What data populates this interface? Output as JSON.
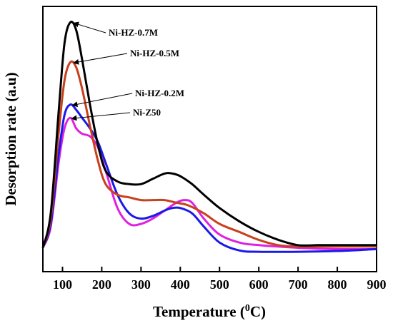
{
  "chart_data": {
    "type": "line",
    "title": "",
    "xlabel": "Temperature (",
    "xlabel_sup": "0",
    "xlabel_unit": "C)",
    "ylabel": "Desorption rate (a.u)",
    "xlim": [
      50,
      900
    ],
    "ylim": [
      0,
      1
    ],
    "x_ticks": [
      100,
      200,
      300,
      400,
      500,
      600,
      700,
      800,
      900
    ],
    "y_ticks_shown": false,
    "grid": false,
    "legend": "annotations",
    "series": [
      {
        "name": "Ni-HZ-0.7M",
        "color": "#000000",
        "points": [
          [
            50,
            0.09
          ],
          [
            70,
            0.22
          ],
          [
            90,
            0.6
          ],
          [
            105,
            0.86
          ],
          [
            120,
            0.94
          ],
          [
            135,
            0.91
          ],
          [
            150,
            0.8
          ],
          [
            170,
            0.63
          ],
          [
            190,
            0.48
          ],
          [
            210,
            0.38
          ],
          [
            240,
            0.34
          ],
          [
            270,
            0.33
          ],
          [
            300,
            0.33
          ],
          [
            330,
            0.35
          ],
          [
            360,
            0.37
          ],
          [
            380,
            0.37
          ],
          [
            400,
            0.36
          ],
          [
            430,
            0.33
          ],
          [
            460,
            0.29
          ],
          [
            500,
            0.24
          ],
          [
            550,
            0.19
          ],
          [
            600,
            0.15
          ],
          [
            650,
            0.12
          ],
          [
            700,
            0.1
          ],
          [
            750,
            0.1
          ],
          [
            800,
            0.1
          ],
          [
            850,
            0.1
          ],
          [
            900,
            0.1
          ]
        ]
      },
      {
        "name": "Ni-HZ-0.5M",
        "color": "#c8401c",
        "points": [
          [
            50,
            0.09
          ],
          [
            70,
            0.2
          ],
          [
            90,
            0.52
          ],
          [
            105,
            0.72
          ],
          [
            120,
            0.79
          ],
          [
            135,
            0.77
          ],
          [
            150,
            0.69
          ],
          [
            170,
            0.55
          ],
          [
            190,
            0.42
          ],
          [
            210,
            0.33
          ],
          [
            240,
            0.29
          ],
          [
            270,
            0.28
          ],
          [
            300,
            0.27
          ],
          [
            330,
            0.27
          ],
          [
            360,
            0.27
          ],
          [
            390,
            0.26
          ],
          [
            420,
            0.25
          ],
          [
            460,
            0.22
          ],
          [
            500,
            0.18
          ],
          [
            550,
            0.15
          ],
          [
            600,
            0.12
          ],
          [
            650,
            0.1
          ],
          [
            700,
            0.095
          ],
          [
            800,
            0.095
          ],
          [
            900,
            0.095
          ]
        ]
      },
      {
        "name": "Ni-HZ-0.2M",
        "color": "#1a1ae6",
        "points": [
          [
            50,
            0.09
          ],
          [
            70,
            0.18
          ],
          [
            90,
            0.44
          ],
          [
            105,
            0.59
          ],
          [
            120,
            0.63
          ],
          [
            135,
            0.61
          ],
          [
            150,
            0.58
          ],
          [
            170,
            0.54
          ],
          [
            190,
            0.49
          ],
          [
            210,
            0.41
          ],
          [
            240,
            0.29
          ],
          [
            270,
            0.22
          ],
          [
            300,
            0.2
          ],
          [
            330,
            0.21
          ],
          [
            360,
            0.23
          ],
          [
            380,
            0.24
          ],
          [
            400,
            0.24
          ],
          [
            430,
            0.22
          ],
          [
            460,
            0.17
          ],
          [
            500,
            0.11
          ],
          [
            550,
            0.08
          ],
          [
            600,
            0.075
          ],
          [
            700,
            0.075
          ],
          [
            800,
            0.078
          ],
          [
            900,
            0.085
          ]
        ]
      },
      {
        "name": "Ni-Z50",
        "color": "#e020e0",
        "points": [
          [
            50,
            0.09
          ],
          [
            70,
            0.17
          ],
          [
            90,
            0.41
          ],
          [
            105,
            0.54
          ],
          [
            120,
            0.58
          ],
          [
            135,
            0.54
          ],
          [
            150,
            0.52
          ],
          [
            170,
            0.51
          ],
          [
            190,
            0.47
          ],
          [
            210,
            0.38
          ],
          [
            240,
            0.24
          ],
          [
            270,
            0.18
          ],
          [
            300,
            0.18
          ],
          [
            330,
            0.2
          ],
          [
            360,
            0.23
          ],
          [
            390,
            0.26
          ],
          [
            410,
            0.27
          ],
          [
            430,
            0.26
          ],
          [
            460,
            0.2
          ],
          [
            500,
            0.14
          ],
          [
            550,
            0.11
          ],
          [
            600,
            0.1
          ],
          [
            700,
            0.09
          ],
          [
            800,
            0.085
          ],
          [
            900,
            0.085
          ]
        ]
      }
    ],
    "annotations": [
      {
        "text": "Ni-HZ-0.7M",
        "series": "Ni-HZ-0.7M",
        "x": 123,
        "y": 0.94
      },
      {
        "text": "Ni-HZ-0.5M",
        "series": "Ni-HZ-0.5M",
        "x": 123,
        "y": 0.79
      },
      {
        "text": "Ni-HZ-0.2M",
        "series": "Ni-HZ-0.2M",
        "x": 120,
        "y": 0.63
      },
      {
        "text": "Ni-Z50",
        "series": "Ni-Z50",
        "x": 118,
        "y": 0.58
      }
    ]
  }
}
